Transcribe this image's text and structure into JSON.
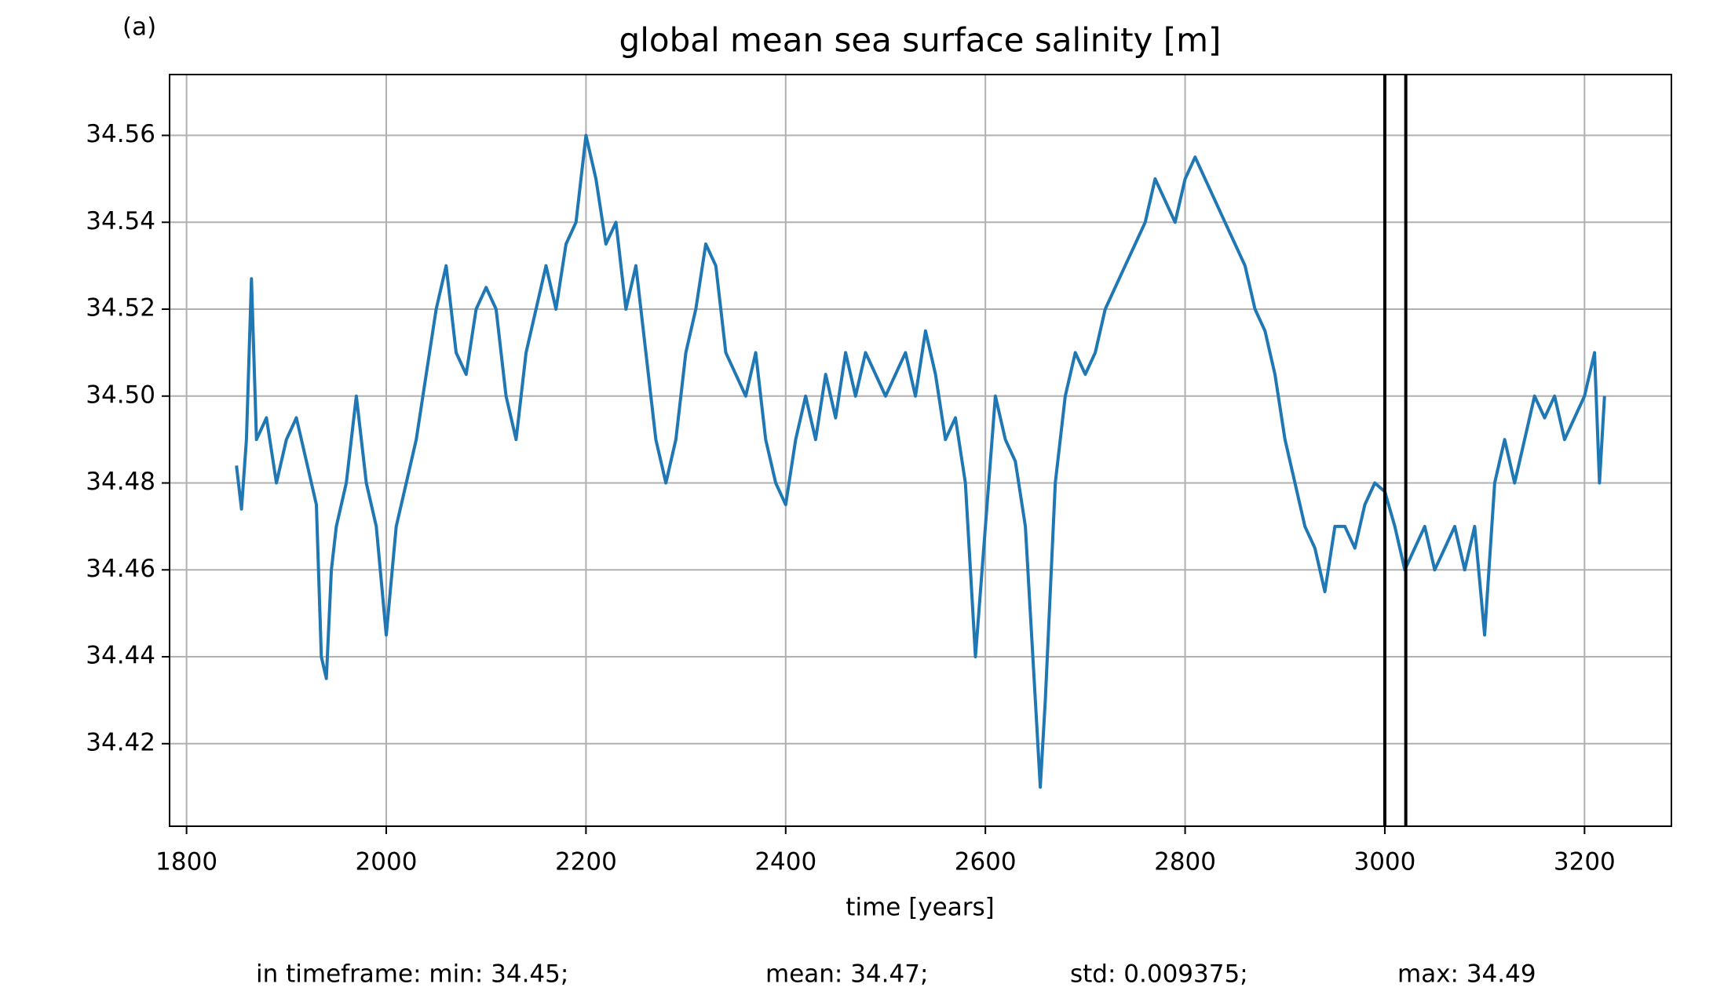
{
  "chart_data": {
    "type": "line",
    "panel_label": "(a)",
    "title": "global mean sea surface salinity [m]",
    "x_label": "time [years]",
    "footer": [
      "in timeframe: min: 34.45;",
      "mean: 34.47;",
      "std: 0.009375;",
      "max: 34.49"
    ],
    "xlim": [
      1783,
      3287
    ],
    "ylim": [
      34.401,
      34.574
    ],
    "xticks": [
      1800,
      2000,
      2200,
      2400,
      2600,
      2800,
      3000,
      3200
    ],
    "yticks": [
      34.42,
      34.44,
      34.46,
      34.48,
      {
        "value": 34.5,
        "label": "34.50"
      },
      34.52,
      34.54,
      34.56
    ],
    "grid": true,
    "vlines": [
      3000,
      3021
    ],
    "vline_color": "#000000",
    "series": [
      {
        "color": "#1f77b4",
        "x": [
          1850,
          1855,
          1860,
          1865,
          1870,
          1880,
          1890,
          1900,
          1910,
          1920,
          1930,
          1935,
          1940,
          1945,
          1950,
          1960,
          1970,
          1980,
          1990,
          2000,
          2010,
          2020,
          2030,
          2040,
          2050,
          2060,
          2070,
          2080,
          2090,
          2100,
          2110,
          2120,
          2130,
          2140,
          2150,
          2160,
          2170,
          2180,
          2190,
          2200,
          2210,
          2220,
          2230,
          2240,
          2250,
          2260,
          2270,
          2280,
          2290,
          2300,
          2310,
          2320,
          2330,
          2340,
          2350,
          2360,
          2370,
          2380,
          2390,
          2400,
          2410,
          2420,
          2430,
          2440,
          2450,
          2460,
          2470,
          2480,
          2490,
          2500,
          2510,
          2520,
          2530,
          2540,
          2550,
          2560,
          2570,
          2580,
          2590,
          2600,
          2610,
          2620,
          2630,
          2640,
          2650,
          2655,
          2660,
          2670,
          2680,
          2690,
          2700,
          2710,
          2720,
          2730,
          2740,
          2750,
          2760,
          2770,
          2780,
          2790,
          2800,
          2810,
          2820,
          2830,
          2840,
          2850,
          2860,
          2870,
          2880,
          2890,
          2900,
          2910,
          2920,
          2930,
          2940,
          2950,
          2960,
          2970,
          2980,
          2990,
          3000,
          3010,
          3020,
          3030,
          3040,
          3050,
          3060,
          3070,
          3080,
          3090,
          3100,
          3110,
          3120,
          3130,
          3140,
          3150,
          3160,
          3170,
          3180,
          3190,
          3200,
          3210,
          3215,
          3220
        ],
        "values": [
          34.484,
          34.474,
          34.49,
          34.527,
          34.49,
          34.495,
          34.48,
          34.49,
          34.495,
          34.485,
          34.475,
          34.44,
          34.435,
          34.46,
          34.47,
          34.48,
          34.5,
          34.48,
          34.47,
          34.445,
          34.47,
          34.48,
          34.49,
          34.505,
          34.52,
          34.53,
          34.51,
          34.505,
          34.52,
          34.525,
          34.52,
          34.5,
          34.49,
          34.51,
          34.52,
          34.53,
          34.52,
          34.535,
          34.54,
          34.56,
          34.55,
          34.535,
          34.54,
          34.52,
          34.53,
          34.51,
          34.49,
          34.48,
          34.49,
          34.51,
          34.52,
          34.535,
          34.53,
          34.51,
          34.505,
          34.5,
          34.51,
          34.49,
          34.48,
          34.475,
          34.49,
          34.5,
          34.49,
          34.505,
          34.495,
          34.51,
          34.5,
          34.51,
          34.505,
          34.5,
          34.505,
          34.51,
          34.5,
          34.515,
          34.505,
          34.49,
          34.495,
          34.48,
          34.44,
          34.47,
          34.5,
          34.49,
          34.485,
          34.47,
          34.43,
          34.41,
          34.43,
          34.48,
          34.5,
          34.51,
          34.505,
          34.51,
          34.52,
          34.525,
          34.53,
          34.535,
          34.54,
          34.55,
          34.545,
          34.54,
          34.55,
          34.555,
          34.55,
          34.545,
          34.54,
          34.535,
          34.53,
          34.52,
          34.515,
          34.505,
          34.49,
          34.48,
          34.47,
          34.465,
          34.455,
          34.47,
          34.47,
          34.465,
          34.475,
          34.48,
          34.478,
          34.47,
          34.46,
          34.465,
          34.47,
          34.46,
          34.465,
          34.47,
          34.46,
          34.47,
          34.445,
          34.48,
          34.49,
          34.48,
          34.49,
          34.5,
          34.495,
          34.5,
          34.49,
          34.495,
          34.5,
          34.51,
          34.48,
          34.5
        ]
      }
    ]
  }
}
